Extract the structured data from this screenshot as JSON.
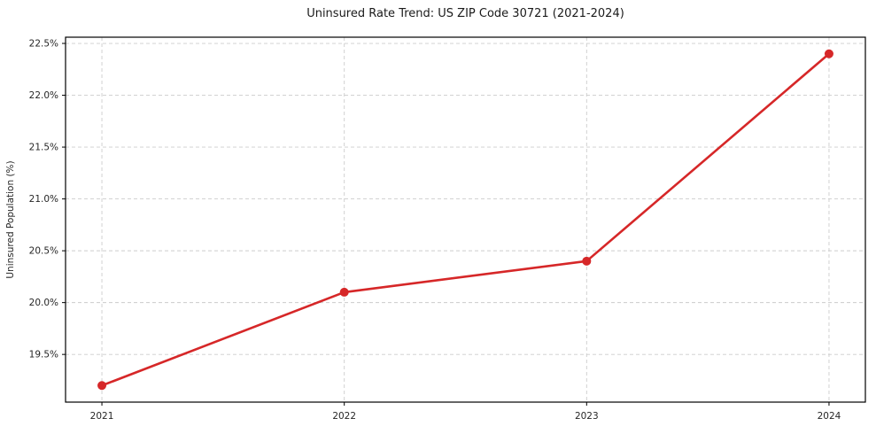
{
  "chart_data": {
    "type": "line",
    "title": "Uninsured Rate Trend: US ZIP Code 30721 (2021-2024)",
    "xlabel": "",
    "ylabel": "Uninsured Population (%)",
    "x": [
      2021,
      2022,
      2023,
      2024
    ],
    "values": [
      19.2,
      20.1,
      20.4,
      22.4
    ],
    "xtick_labels": [
      "2021",
      "2022",
      "2023",
      "2024"
    ],
    "xticks": [
      2021,
      2022,
      2023,
      2024
    ],
    "ytick_labels": [
      "19.5%",
      "20.0%",
      "20.5%",
      "21.0%",
      "21.5%",
      "22.0%",
      "22.5%"
    ],
    "yticks": [
      19.5,
      20.0,
      20.5,
      21.0,
      21.5,
      22.0,
      22.5
    ],
    "xlim": [
      2020.85,
      2024.15
    ],
    "ylim": [
      19.04,
      22.56
    ],
    "grid": true,
    "legend": "none",
    "line_color": "#d62728",
    "marker": "circle",
    "grid_color": "#cccccc",
    "axis_color": "#000000",
    "background_color": "#ffffff"
  }
}
